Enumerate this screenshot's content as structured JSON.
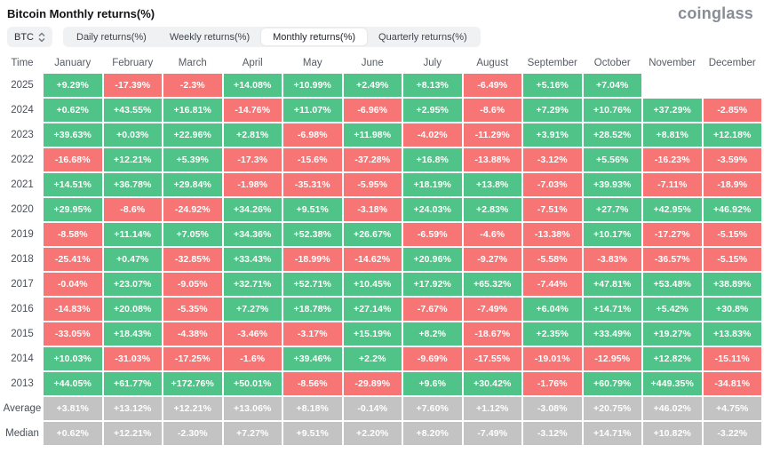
{
  "header": {
    "title": "Bitcoin Monthly returns(%)",
    "logo_text": "coinglass"
  },
  "toolbar": {
    "symbol": "BTC",
    "tabs": [
      {
        "label": "Daily returns(%)",
        "active": false
      },
      {
        "label": "Weekly returns(%)",
        "active": false
      },
      {
        "label": "Monthly returns(%)",
        "active": true
      },
      {
        "label": "Quarterly returns(%)",
        "active": false
      }
    ]
  },
  "colors": {
    "positive": "#50c488",
    "negative": "#f87575",
    "summary": "#c3c3c3",
    "cell_text": "#ffffff"
  },
  "chart_data": {
    "type": "heatmap",
    "title": "Bitcoin Monthly returns(%)",
    "time_header": "Time",
    "columns": [
      "January",
      "February",
      "March",
      "April",
      "May",
      "June",
      "July",
      "August",
      "September",
      "October",
      "November",
      "December"
    ],
    "rows": [
      {
        "label": "2025",
        "summary": false,
        "values": [
          "+9.29%",
          "-17.39%",
          "-2.3%",
          "+14.08%",
          "+10.99%",
          "+2.49%",
          "+8.13%",
          "-6.49%",
          "+5.16%",
          "+7.04%",
          "",
          ""
        ]
      },
      {
        "label": "2024",
        "summary": false,
        "values": [
          "+0.62%",
          "+43.55%",
          "+16.81%",
          "-14.76%",
          "+11.07%",
          "-6.96%",
          "+2.95%",
          "-8.6%",
          "+7.29%",
          "+10.76%",
          "+37.29%",
          "-2.85%"
        ]
      },
      {
        "label": "2023",
        "summary": false,
        "values": [
          "+39.63%",
          "+0.03%",
          "+22.96%",
          "+2.81%",
          "-6.98%",
          "+11.98%",
          "-4.02%",
          "-11.29%",
          "+3.91%",
          "+28.52%",
          "+8.81%",
          "+12.18%"
        ]
      },
      {
        "label": "2022",
        "summary": false,
        "values": [
          "-16.68%",
          "+12.21%",
          "+5.39%",
          "-17.3%",
          "-15.6%",
          "-37.28%",
          "+16.8%",
          "-13.88%",
          "-3.12%",
          "+5.56%",
          "-16.23%",
          "-3.59%"
        ]
      },
      {
        "label": "2021",
        "summary": false,
        "values": [
          "+14.51%",
          "+36.78%",
          "+29.84%",
          "-1.98%",
          "-35.31%",
          "-5.95%",
          "+18.19%",
          "+13.8%",
          "-7.03%",
          "+39.93%",
          "-7.11%",
          "-18.9%"
        ]
      },
      {
        "label": "2020",
        "summary": false,
        "values": [
          "+29.95%",
          "-8.6%",
          "-24.92%",
          "+34.26%",
          "+9.51%",
          "-3.18%",
          "+24.03%",
          "+2.83%",
          "-7.51%",
          "+27.7%",
          "+42.95%",
          "+46.92%"
        ]
      },
      {
        "label": "2019",
        "summary": false,
        "values": [
          "-8.58%",
          "+11.14%",
          "+7.05%",
          "+34.36%",
          "+52.38%",
          "+26.67%",
          "-6.59%",
          "-4.6%",
          "-13.38%",
          "+10.17%",
          "-17.27%",
          "-5.15%"
        ]
      },
      {
        "label": "2018",
        "summary": false,
        "values": [
          "-25.41%",
          "+0.47%",
          "-32.85%",
          "+33.43%",
          "-18.99%",
          "-14.62%",
          "+20.96%",
          "-9.27%",
          "-5.58%",
          "-3.83%",
          "-36.57%",
          "-5.15%"
        ]
      },
      {
        "label": "2017",
        "summary": false,
        "values": [
          "-0.04%",
          "+23.07%",
          "-9.05%",
          "+32.71%",
          "+52.71%",
          "+10.45%",
          "+17.92%",
          "+65.32%",
          "-7.44%",
          "+47.81%",
          "+53.48%",
          "+38.89%"
        ]
      },
      {
        "label": "2016",
        "summary": false,
        "values": [
          "-14.83%",
          "+20.08%",
          "-5.35%",
          "+7.27%",
          "+18.78%",
          "+27.14%",
          "-7.67%",
          "-7.49%",
          "+6.04%",
          "+14.71%",
          "+5.42%",
          "+30.8%"
        ]
      },
      {
        "label": "2015",
        "summary": false,
        "values": [
          "-33.05%",
          "+18.43%",
          "-4.38%",
          "-3.46%",
          "-3.17%",
          "+15.19%",
          "+8.2%",
          "-18.67%",
          "+2.35%",
          "+33.49%",
          "+19.27%",
          "+13.83%"
        ]
      },
      {
        "label": "2014",
        "summary": false,
        "values": [
          "+10.03%",
          "-31.03%",
          "-17.25%",
          "-1.6%",
          "+39.46%",
          "+2.2%",
          "-9.69%",
          "-17.55%",
          "-19.01%",
          "-12.95%",
          "+12.82%",
          "-15.11%"
        ]
      },
      {
        "label": "2013",
        "summary": false,
        "values": [
          "+44.05%",
          "+61.77%",
          "+172.76%",
          "+50.01%",
          "-8.56%",
          "-29.89%",
          "+9.6%",
          "+30.42%",
          "-1.76%",
          "+60.79%",
          "+449.35%",
          "-34.81%"
        ]
      },
      {
        "label": "Average",
        "summary": true,
        "values": [
          "+3.81%",
          "+13.12%",
          "+12.21%",
          "+13.06%",
          "+8.18%",
          "-0.14%",
          "+7.60%",
          "+1.12%",
          "-3.08%",
          "+20.75%",
          "+46.02%",
          "+4.75%"
        ]
      },
      {
        "label": "Median",
        "summary": true,
        "values": [
          "+0.62%",
          "+12.21%",
          "-2.30%",
          "+7.27%",
          "+9.51%",
          "+2.20%",
          "+8.20%",
          "-7.49%",
          "-3.12%",
          "+14.71%",
          "+10.82%",
          "-3.22%"
        ]
      }
    ]
  }
}
